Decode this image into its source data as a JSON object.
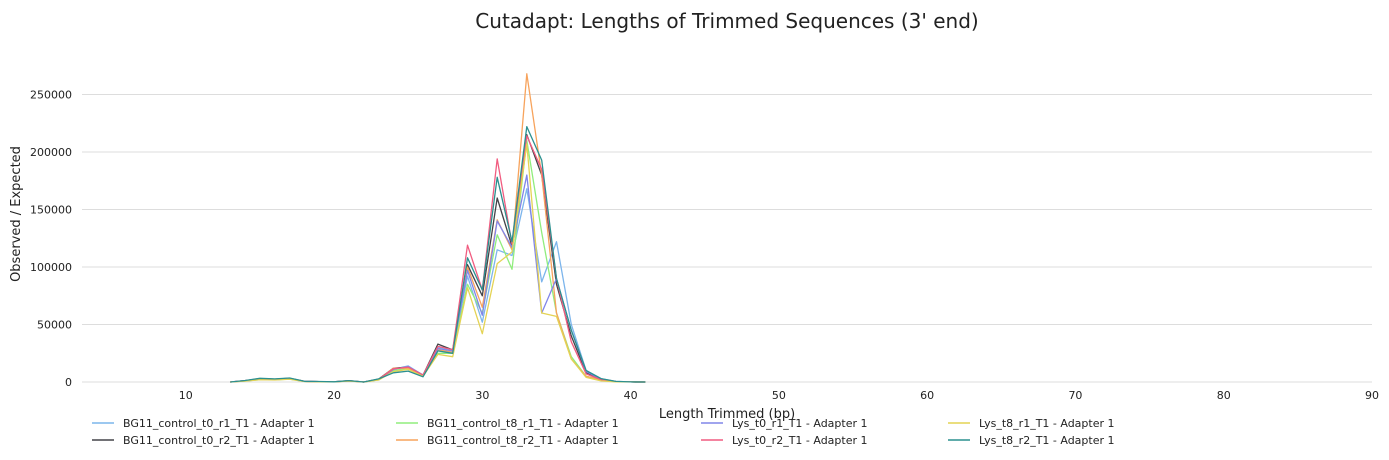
{
  "chart_data": {
    "type": "line",
    "title": "Cutadapt: Lengths of Trimmed Sequences (3' end)",
    "xlabel": "Length Trimmed (bp)",
    "ylabel": "Observed / Expected",
    "xlim": [
      3,
      90
    ],
    "ylim": [
      0,
      280000
    ],
    "xticks": [
      10,
      20,
      30,
      40,
      50,
      60,
      70,
      80,
      90
    ],
    "yticks": [
      0,
      50000,
      100000,
      150000,
      200000,
      250000
    ],
    "grid": "horizontal",
    "legend_position": "bottom",
    "x": [
      13,
      14,
      15,
      16,
      17,
      18,
      19,
      20,
      21,
      22,
      23,
      24,
      25,
      26,
      27,
      28,
      29,
      30,
      31,
      32,
      33,
      34,
      35,
      36,
      37,
      38,
      39,
      40,
      41
    ],
    "series": [
      {
        "name": "BG11_control_t0_r1_T1 - Adapter 1",
        "color": "#7cb5ec",
        "values": [
          0,
          1000,
          2500,
          2000,
          3000,
          500,
          300,
          200,
          1000,
          0,
          2000,
          11000,
          14000,
          6000,
          30000,
          27000,
          92000,
          52000,
          115000,
          110000,
          168000,
          87000,
          122000,
          50000,
          10000,
          3000,
          500,
          100,
          0
        ]
      },
      {
        "name": "BG11_control_t0_r2_T1 - Adapter 1",
        "color": "#434348",
        "values": [
          0,
          1200,
          3000,
          2500,
          3200,
          600,
          300,
          200,
          1100,
          0,
          2500,
          12000,
          13000,
          6000,
          33000,
          28000,
          102000,
          75000,
          160000,
          118000,
          215000,
          180000,
          85000,
          40000,
          8000,
          2500,
          400,
          100,
          0
        ]
      },
      {
        "name": "BG11_control_t8_r1_T1 - Adapter 1",
        "color": "#90ed7d",
        "values": [
          0,
          900,
          2000,
          1800,
          2500,
          400,
          200,
          100,
          900,
          0,
          1800,
          10000,
          12000,
          5000,
          25000,
          25000,
          85000,
          60000,
          128000,
          98000,
          210000,
          130000,
          60000,
          22000,
          5000,
          1500,
          300,
          100,
          0
        ]
      },
      {
        "name": "BG11_control_t8_r2_T1 - Adapter 1",
        "color": "#f7a35c",
        "values": [
          0,
          1000,
          2200,
          2000,
          2800,
          500,
          300,
          100,
          1000,
          0,
          2200,
          12000,
          12000,
          5500,
          28000,
          26000,
          100000,
          65000,
          141000,
          115000,
          268000,
          180000,
          60000,
          20000,
          5000,
          2000,
          300,
          100,
          0
        ]
      },
      {
        "name": "Lys_t0_r1_T1 - Adapter 1",
        "color": "#8085e9",
        "values": [
          0,
          1100,
          2800,
          2300,
          3000,
          500,
          300,
          200,
          1000,
          0,
          2300,
          11000,
          13500,
          6000,
          29000,
          27000,
          97000,
          58000,
          140000,
          117000,
          180000,
          60000,
          90000,
          45000,
          9000,
          2500,
          400,
          100,
          0
        ]
      },
      {
        "name": "Lys_t0_r2_T1 - Adapter 1",
        "color": "#f15c80",
        "values": [
          0,
          1100,
          2700,
          2200,
          3100,
          500,
          300,
          200,
          1000,
          0,
          2300,
          11500,
          13000,
          6000,
          31000,
          28000,
          119000,
          80000,
          194000,
          120000,
          214000,
          185000,
          90000,
          35000,
          7000,
          2000,
          400,
          100,
          0
        ]
      },
      {
        "name": "Lys_t8_r1_T1 - Adapter 1",
        "color": "#e4d354",
        "values": [
          0,
          800,
          2000,
          1700,
          2400,
          400,
          200,
          100,
          800,
          0,
          1700,
          9000,
          11000,
          5000,
          24000,
          22000,
          82000,
          42000,
          103000,
          113000,
          207000,
          60000,
          57000,
          20000,
          4000,
          1000,
          200,
          100,
          0
        ]
      },
      {
        "name": "Lys_t8_r2_T1 - Adapter 1",
        "color": "#2b908f",
        "values": [
          0,
          1300,
          3200,
          2700,
          3500,
          600,
          400,
          200,
          1200,
          0,
          2700,
          8000,
          9500,
          4500,
          27000,
          25000,
          108000,
          80000,
          178000,
          122000,
          222000,
          193000,
          90000,
          45000,
          10000,
          3000,
          500,
          100,
          0
        ]
      }
    ]
  }
}
